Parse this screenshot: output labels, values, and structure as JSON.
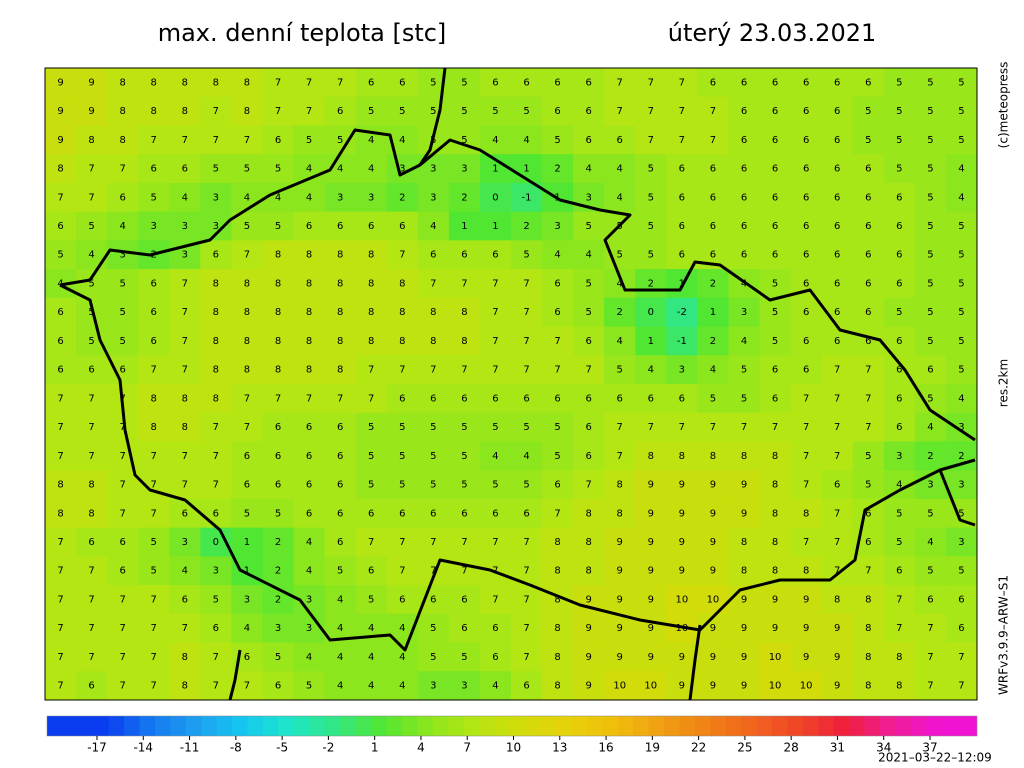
{
  "header": {
    "title": "max. denní teplota [stc]",
    "date": "úterý 23.03.2021"
  },
  "side_labels": {
    "copyright": "(c)meteopress",
    "resolution": "res.2km",
    "model": "WRFv3.9.9–ARW–S1"
  },
  "footer": {
    "timestamp": "2021–03–22–12:09"
  },
  "map": {
    "colorbar": {
      "ticks": [
        -17,
        -14,
        -11,
        -8,
        -5,
        -2,
        1,
        4,
        7,
        10,
        13,
        16,
        19,
        22,
        25,
        28,
        31,
        34,
        37
      ],
      "colors": [
        "#0a3cf0",
        "#1478f0",
        "#1ea0f0",
        "#14c8f0",
        "#1ee6c8",
        "#32e682",
        "#50e632",
        "#8ce61e",
        "#b4e614",
        "#d2dc0a",
        "#e6d20a",
        "#f0be0a",
        "#f0a014",
        "#f08214",
        "#f0641e",
        "#f04628",
        "#f01e3c",
        "#f01e96",
        "#f014d2"
      ]
    },
    "rows": [
      [
        9,
        9,
        8,
        8,
        8,
        8,
        8,
        7,
        7,
        7,
        6,
        6,
        5,
        5,
        6,
        6,
        6,
        6,
        7,
        7,
        7,
        6,
        6,
        6,
        6,
        6,
        6,
        5,
        5,
        5
      ],
      [
        9,
        9,
        8,
        8,
        8,
        7,
        8,
        7,
        7,
        6,
        5,
        5,
        5,
        5,
        5,
        5,
        6,
        6,
        7,
        7,
        7,
        7,
        6,
        6,
        6,
        6,
        5,
        5,
        5,
        5
      ],
      [
        9,
        8,
        8,
        7,
        7,
        7,
        7,
        6,
        5,
        5,
        4,
        4,
        5,
        5,
        4,
        4,
        5,
        6,
        6,
        7,
        7,
        7,
        6,
        6,
        6,
        6,
        5,
        5,
        5,
        5
      ],
      [
        8,
        7,
        7,
        6,
        6,
        5,
        5,
        5,
        4,
        4,
        4,
        3,
        3,
        3,
        1,
        1,
        2,
        4,
        4,
        5,
        6,
        6,
        6,
        6,
        6,
        6,
        6,
        5,
        5,
        4
      ],
      [
        7,
        7,
        6,
        5,
        4,
        3,
        4,
        4,
        4,
        3,
        3,
        2,
        3,
        2,
        0,
        -1,
        1,
        3,
        4,
        5,
        6,
        6,
        6,
        6,
        6,
        6,
        6,
        6,
        5,
        4
      ],
      [
        6,
        5,
        4,
        3,
        3,
        3,
        5,
        5,
        6,
        6,
        6,
        6,
        4,
        1,
        1,
        2,
        3,
        5,
        5,
        5,
        6,
        6,
        6,
        6,
        6,
        6,
        6,
        6,
        5,
        5
      ],
      [
        5,
        4,
        3,
        2,
        3,
        6,
        7,
        8,
        8,
        8,
        8,
        7,
        6,
        6,
        6,
        5,
        4,
        4,
        5,
        5,
        6,
        6,
        6,
        6,
        6,
        6,
        6,
        6,
        5,
        5
      ],
      [
        4,
        5,
        5,
        6,
        7,
        8,
        8,
        8,
        8,
        8,
        8,
        8,
        7,
        7,
        7,
        7,
        6,
        5,
        4,
        2,
        1,
        2,
        4,
        5,
        6,
        6,
        6,
        6,
        5,
        5
      ],
      [
        6,
        5,
        5,
        6,
        7,
        8,
        8,
        8,
        8,
        8,
        8,
        8,
        8,
        8,
        7,
        7,
        6,
        5,
        2,
        0,
        -2,
        1,
        3,
        5,
        6,
        6,
        6,
        5,
        5,
        5
      ],
      [
        6,
        5,
        5,
        6,
        7,
        8,
        8,
        8,
        8,
        8,
        8,
        8,
        8,
        8,
        7,
        7,
        7,
        6,
        4,
        1,
        -1,
        2,
        4,
        5,
        6,
        6,
        6,
        6,
        5,
        5
      ],
      [
        6,
        6,
        6,
        7,
        7,
        8,
        8,
        8,
        8,
        8,
        7,
        7,
        7,
        7,
        7,
        7,
        7,
        7,
        5,
        4,
        3,
        4,
        5,
        6,
        6,
        7,
        7,
        6,
        6,
        5
      ],
      [
        7,
        7,
        7,
        8,
        8,
        8,
        7,
        7,
        7,
        7,
        7,
        6,
        6,
        6,
        6,
        6,
        6,
        6,
        6,
        6,
        6,
        5,
        5,
        6,
        7,
        7,
        7,
        6,
        5,
        4
      ],
      [
        7,
        7,
        7,
        8,
        8,
        7,
        7,
        6,
        6,
        6,
        5,
        5,
        5,
        5,
        5,
        5,
        5,
        6,
        7,
        7,
        7,
        7,
        7,
        7,
        7,
        7,
        7,
        6,
        4,
        3
      ],
      [
        7,
        7,
        7,
        7,
        7,
        7,
        6,
        6,
        6,
        6,
        5,
        5,
        5,
        5,
        4,
        4,
        5,
        6,
        7,
        8,
        8,
        8,
        8,
        8,
        7,
        7,
        5,
        3,
        2,
        2
      ],
      [
        8,
        8,
        7,
        7,
        7,
        7,
        6,
        6,
        6,
        6,
        5,
        5,
        5,
        5,
        5,
        5,
        6,
        7,
        8,
        9,
        9,
        9,
        9,
        8,
        7,
        6,
        5,
        4,
        3,
        3
      ],
      [
        8,
        8,
        7,
        7,
        6,
        6,
        5,
        5,
        6,
        6,
        6,
        6,
        6,
        6,
        6,
        6,
        7,
        8,
        8,
        9,
        9,
        9,
        9,
        8,
        8,
        7,
        6,
        5,
        5,
        5
      ],
      [
        7,
        6,
        6,
        5,
        3,
        0,
        1,
        2,
        4,
        6,
        7,
        7,
        7,
        7,
        7,
        7,
        8,
        8,
        9,
        9,
        9,
        9,
        8,
        8,
        7,
        7,
        6,
        5,
        4,
        3
      ],
      [
        7,
        7,
        6,
        5,
        4,
        3,
        1,
        2,
        4,
        5,
        6,
        7,
        7,
        7,
        7,
        7,
        8,
        8,
        9,
        9,
        9,
        9,
        8,
        8,
        8,
        7,
        7,
        6,
        5,
        5
      ],
      [
        7,
        7,
        7,
        7,
        6,
        5,
        3,
        2,
        3,
        4,
        5,
        6,
        6,
        6,
        7,
        7,
        8,
        9,
        9,
        9,
        10,
        10,
        9,
        9,
        9,
        8,
        8,
        7,
        6,
        6
      ],
      [
        7,
        7,
        7,
        7,
        7,
        6,
        4,
        3,
        3,
        4,
        4,
        4,
        5,
        6,
        6,
        7,
        8,
        9,
        9,
        9,
        10,
        9,
        9,
        9,
        9,
        9,
        8,
        7,
        7,
        6
      ],
      [
        7,
        7,
        7,
        7,
        8,
        7,
        6,
        5,
        4,
        4,
        4,
        4,
        5,
        5,
        6,
        7,
        8,
        9,
        9,
        9,
        9,
        9,
        9,
        10,
        9,
        9,
        8,
        8,
        7,
        7
      ],
      [
        7,
        6,
        7,
        7,
        8,
        7,
        7,
        6,
        5,
        4,
        4,
        4,
        3,
        3,
        4,
        6,
        8,
        9,
        10,
        10,
        9,
        9,
        9,
        10,
        10,
        9,
        8,
        8,
        7,
        7
      ]
    ]
  }
}
